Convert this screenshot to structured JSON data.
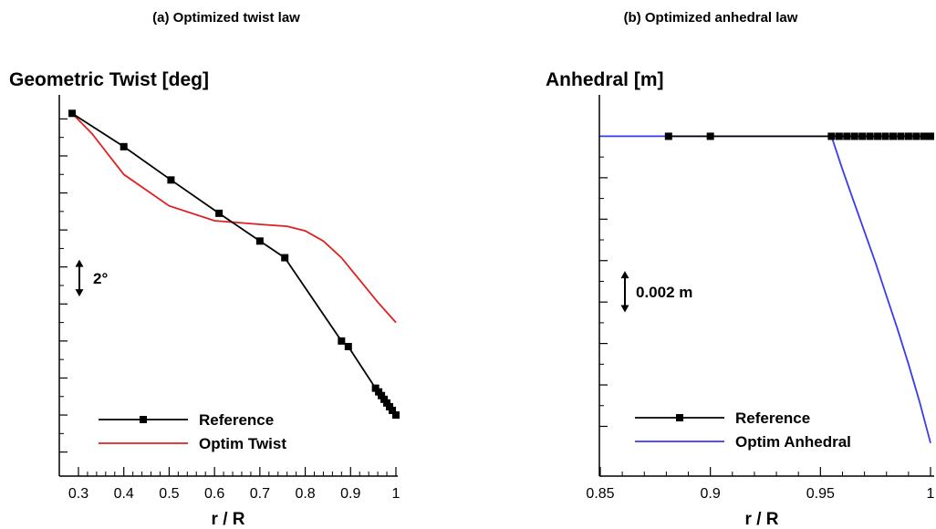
{
  "chart_data": [
    {
      "type": "line",
      "caption": "(a) Optimized twist law",
      "title": "Geometric Twist [deg]",
      "xlabel": "r / R",
      "ylabel": "",
      "xlim": [
        0.27,
        1.0
      ],
      "xticks": [
        0.3,
        0.4,
        0.5,
        0.6,
        0.7,
        0.8,
        0.9,
        1.0
      ],
      "xtick_labels": [
        "0.3",
        "0.4",
        "0.5",
        "0.6",
        "0.7",
        "0.8",
        "0.9",
        "1"
      ],
      "yticks_unlabeled": [
        11.2,
        9.2,
        7.2,
        5.2,
        3.2,
        1.2,
        -0.8,
        -2.8,
        -4.8,
        -6.8
      ],
      "ylim": [
        -8.1,
        12.5
      ],
      "scale_bar": {
        "label": "2°",
        "y_from": 1.6,
        "y_to": 3.6
      },
      "legend": {
        "position": "bottom-left"
      },
      "series": [
        {
          "name": "Reference",
          "color": "#000000",
          "marker": "square",
          "x": [
            0.286,
            0.4,
            0.504,
            0.61,
            0.7,
            0.755,
            0.88,
            0.895,
            0.955,
            0.962,
            0.968,
            0.974,
            0.98,
            0.986,
            0.992,
            1.0
          ],
          "y": [
            11.5,
            9.7,
            7.9,
            6.1,
            4.6,
            3.7,
            -0.8,
            -1.1,
            -3.35,
            -3.55,
            -3.75,
            -3.95,
            -4.15,
            -4.35,
            -4.55,
            -4.8
          ]
        },
        {
          "name": "Optim Twist",
          "color": "#e02020",
          "marker": "none",
          "x": [
            0.286,
            0.33,
            0.4,
            0.5,
            0.6,
            0.7,
            0.76,
            0.8,
            0.84,
            0.88,
            0.92,
            0.96,
            1.0
          ],
          "y": [
            11.5,
            10.4,
            8.2,
            6.5,
            5.7,
            5.5,
            5.4,
            5.15,
            4.6,
            3.7,
            2.5,
            1.3,
            0.2
          ]
        }
      ]
    },
    {
      "type": "line",
      "caption": "(b) Optimized anhedral law",
      "title": "Anhedral [m]",
      "xlabel": "r / R",
      "ylabel": "",
      "xlim": [
        0.85,
        1.0
      ],
      "xticks": [
        0.85,
        0.9,
        0.95,
        1.0
      ],
      "xtick_labels": [
        "0.85",
        "0.9",
        "0.95",
        "1"
      ],
      "yticks_unlabeled": [
        0.0,
        -0.002,
        -0.004,
        -0.006,
        -0.008,
        -0.01,
        -0.012,
        -0.014
      ],
      "ylim": [
        -0.0164,
        0.002
      ],
      "scale_bar": {
        "label": "0.002 m",
        "y_from": -0.0085,
        "y_to": -0.0065
      },
      "legend": {
        "position": "bottom-left"
      },
      "series": [
        {
          "name": "Reference",
          "color": "#000000",
          "marker": "square",
          "x": [
            0.881,
            0.9,
            0.955,
            0.9585,
            0.962,
            0.9655,
            0.969,
            0.9725,
            0.976,
            0.9795,
            0.983,
            0.9865,
            0.99,
            0.9935,
            0.997,
            1.0
          ],
          "y": [
            0,
            0,
            0,
            0,
            0,
            0,
            0,
            0,
            0,
            0,
            0,
            0,
            0,
            0,
            0,
            0
          ]
        },
        {
          "name": "Optim Anhedral",
          "color": "#3a3af0",
          "marker": "none",
          "x": [
            0.85,
            0.9,
            0.955,
            0.96,
            0.965,
            0.97,
            0.975,
            0.98,
            0.985,
            0.99,
            0.995,
            1.0
          ],
          "y": [
            0,
            0,
            0,
            -0.0016,
            -0.0031,
            -0.0046,
            -0.0061,
            -0.0077,
            -0.0093,
            -0.011,
            -0.0128,
            -0.0148
          ]
        }
      ]
    }
  ]
}
